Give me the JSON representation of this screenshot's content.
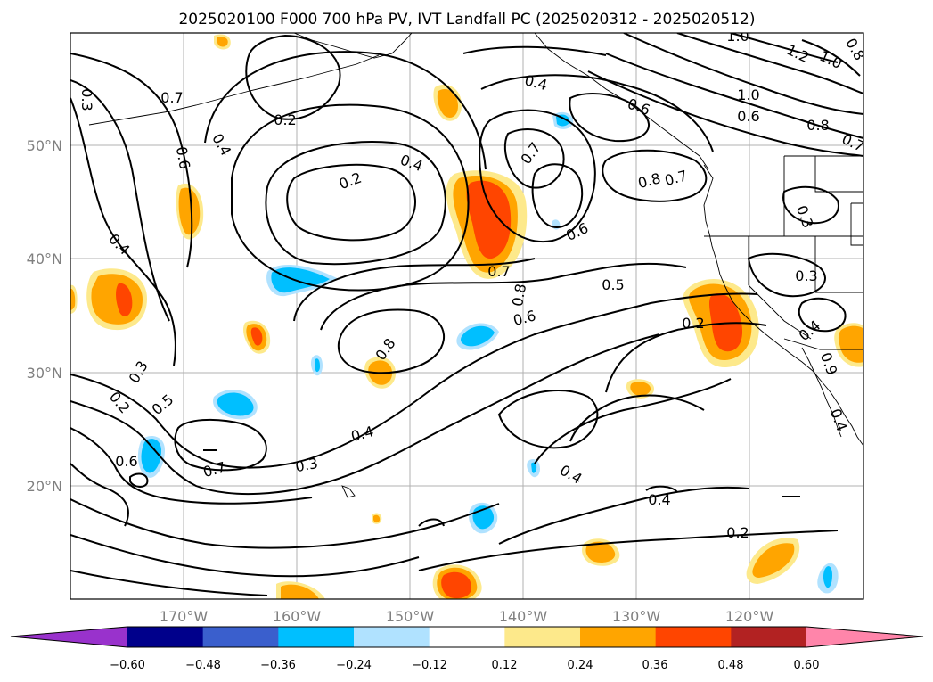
{
  "title": "2025020100 F000 700 hPa PV, IVT Landfall PC (2025020312 - 2025020512)",
  "lat_labels": [
    "50°N",
    "40°N",
    "30°N",
    "20°N"
  ],
  "lon_labels": [
    "170°W",
    "160°W",
    "150°W",
    "140°W",
    "130°W",
    "120°W"
  ],
  "colorbar": {
    "ticks": [
      "−0.60",
      "−0.48",
      "−0.36",
      "−0.24",
      "−0.12",
      "0.12",
      "0.24",
      "0.36",
      "0.48",
      "0.60"
    ],
    "colors": [
      "#9932cc",
      "#00008b",
      "#3a5fcd",
      "#00bfff",
      "#b0e2ff",
      "#ffffff",
      "#fde98b",
      "#ffa500",
      "#ff4500",
      "#b22222",
      "#ff85aa"
    ]
  },
  "contour_labels": [
    {
      "text": "0.7"
    },
    {
      "text": "0.2"
    },
    {
      "text": "0.4"
    },
    {
      "text": "0.6"
    },
    {
      "text": "0.3"
    },
    {
      "text": "0.2"
    },
    {
      "text": "0.4"
    },
    {
      "text": "0.4"
    },
    {
      "text": "0.7"
    },
    {
      "text": "0.8"
    },
    {
      "text": "0.7"
    },
    {
      "text": "0.6"
    },
    {
      "text": "1.0"
    },
    {
      "text": "1.2"
    },
    {
      "text": "1.0"
    },
    {
      "text": "1.0"
    },
    {
      "text": "0.6"
    },
    {
      "text": "0.8"
    },
    {
      "text": "0.7"
    },
    {
      "text": "0.6"
    },
    {
      "text": "0.4"
    },
    {
      "text": "0.7"
    },
    {
      "text": "0.8"
    },
    {
      "text": "0.6"
    },
    {
      "text": "0.5"
    },
    {
      "text": "0.3"
    },
    {
      "text": "0.2"
    },
    {
      "text": "0.4"
    },
    {
      "text": "0.8"
    },
    {
      "text": "0.3"
    },
    {
      "text": "0.2"
    },
    {
      "text": "0.5"
    },
    {
      "text": "0.6"
    },
    {
      "text": "0.7"
    },
    {
      "text": "0.4"
    },
    {
      "text": "0.3"
    },
    {
      "text": "0.4"
    },
    {
      "text": "0.4"
    },
    {
      "text": "0.2"
    },
    {
      "text": "0.3"
    },
    {
      "text": "0.8"
    },
    {
      "text": "0.9"
    },
    {
      "text": "0.4"
    }
  ]
}
